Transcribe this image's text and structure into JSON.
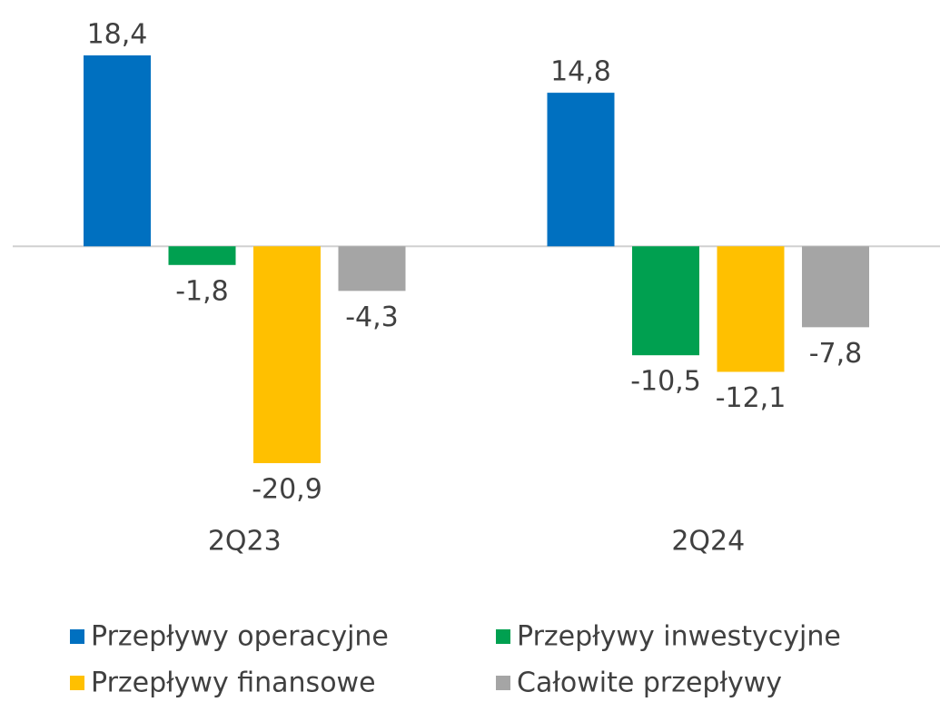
{
  "chart_data": {
    "type": "bar",
    "categories": [
      "2Q23",
      "2Q24"
    ],
    "series": [
      {
        "name": "Przepływy operacyjne",
        "color": "#0070c0",
        "values": [
          18.4,
          14.8
        ],
        "value_labels": [
          "18,4",
          "14,8"
        ]
      },
      {
        "name": "Przepływy inwestycyjne",
        "color": "#00a050",
        "values": [
          -1.8,
          -10.5
        ],
        "value_labels": [
          "-1,8",
          "-10,5"
        ]
      },
      {
        "name": "Przepływy finansowe",
        "color": "#ffc000",
        "values": [
          -20.9,
          -12.1
        ],
        "value_labels": [
          "-20,9",
          "-12,1"
        ]
      },
      {
        "name": "Całowite przepływy",
        "color": "#a5a5a5",
        "values": [
          -4.3,
          -7.8
        ],
        "value_labels": [
          "-4,3",
          "-7,8"
        ]
      }
    ],
    "legend": "bottom"
  }
}
